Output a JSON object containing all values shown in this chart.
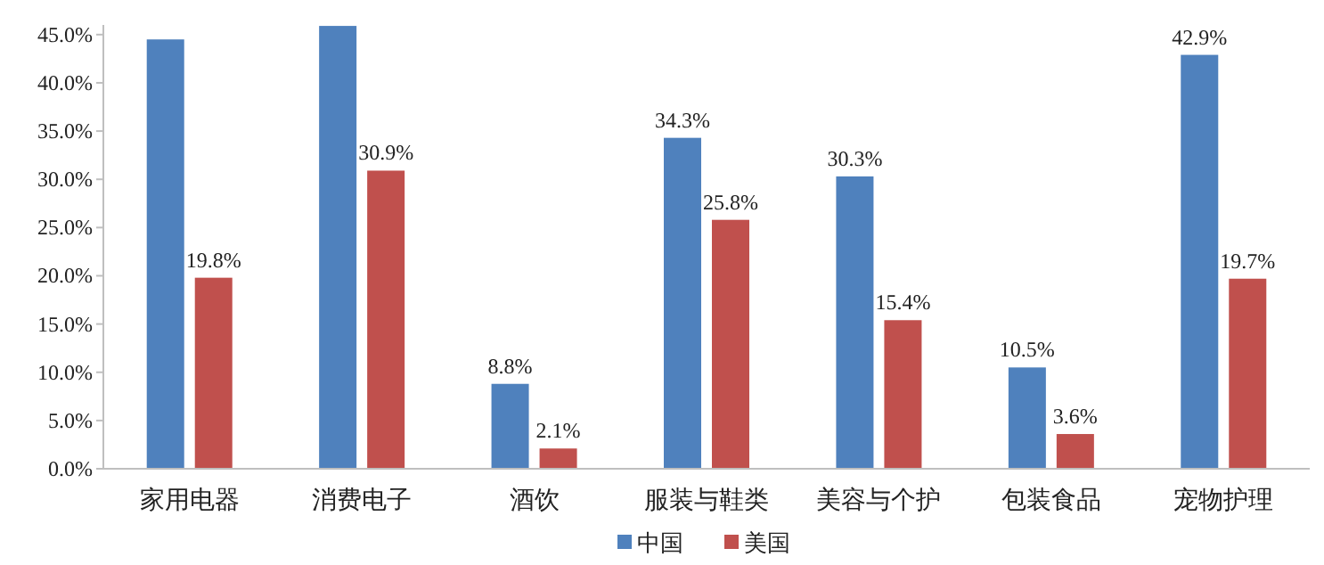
{
  "chart_data": {
    "type": "bar",
    "categories": [
      "家用电器",
      "消费电子",
      "酒饮",
      "服装与鞋类",
      "美容与个护",
      "包装食品",
      "宠物护理"
    ],
    "series": [
      {
        "name": "中国",
        "color": "#4f81bd",
        "values": [
          44.5,
          45.9,
          8.8,
          34.3,
          30.3,
          10.5,
          42.9
        ],
        "value_labels": [
          null,
          null,
          "8.8%",
          "34.3%",
          "30.3%",
          "10.5%",
          "42.9%"
        ]
      },
      {
        "name": "美国",
        "color": "#c0504d",
        "values": [
          19.8,
          30.9,
          2.1,
          25.8,
          15.4,
          3.6,
          19.7
        ],
        "value_labels": [
          "19.8%",
          "30.9%",
          "2.1%",
          "25.8%",
          "15.4%",
          "3.6%",
          "19.7%"
        ]
      }
    ],
    "ylim": [
      0,
      46
    ],
    "yticks": [
      {
        "value": 0,
        "label": "0.0%"
      },
      {
        "value": 5,
        "label": "5.0%"
      },
      {
        "value": 10,
        "label": "10.0%"
      },
      {
        "value": 15,
        "label": "15.0%"
      },
      {
        "value": 20,
        "label": "20.0%"
      },
      {
        "value": 25,
        "label": "25.0%"
      },
      {
        "value": 30,
        "label": "30.0%"
      },
      {
        "value": 35,
        "label": "35.0%"
      },
      {
        "value": 40,
        "label": "40.0%"
      },
      {
        "value": 45,
        "label": "45.0%"
      }
    ],
    "legend": "bottom"
  }
}
